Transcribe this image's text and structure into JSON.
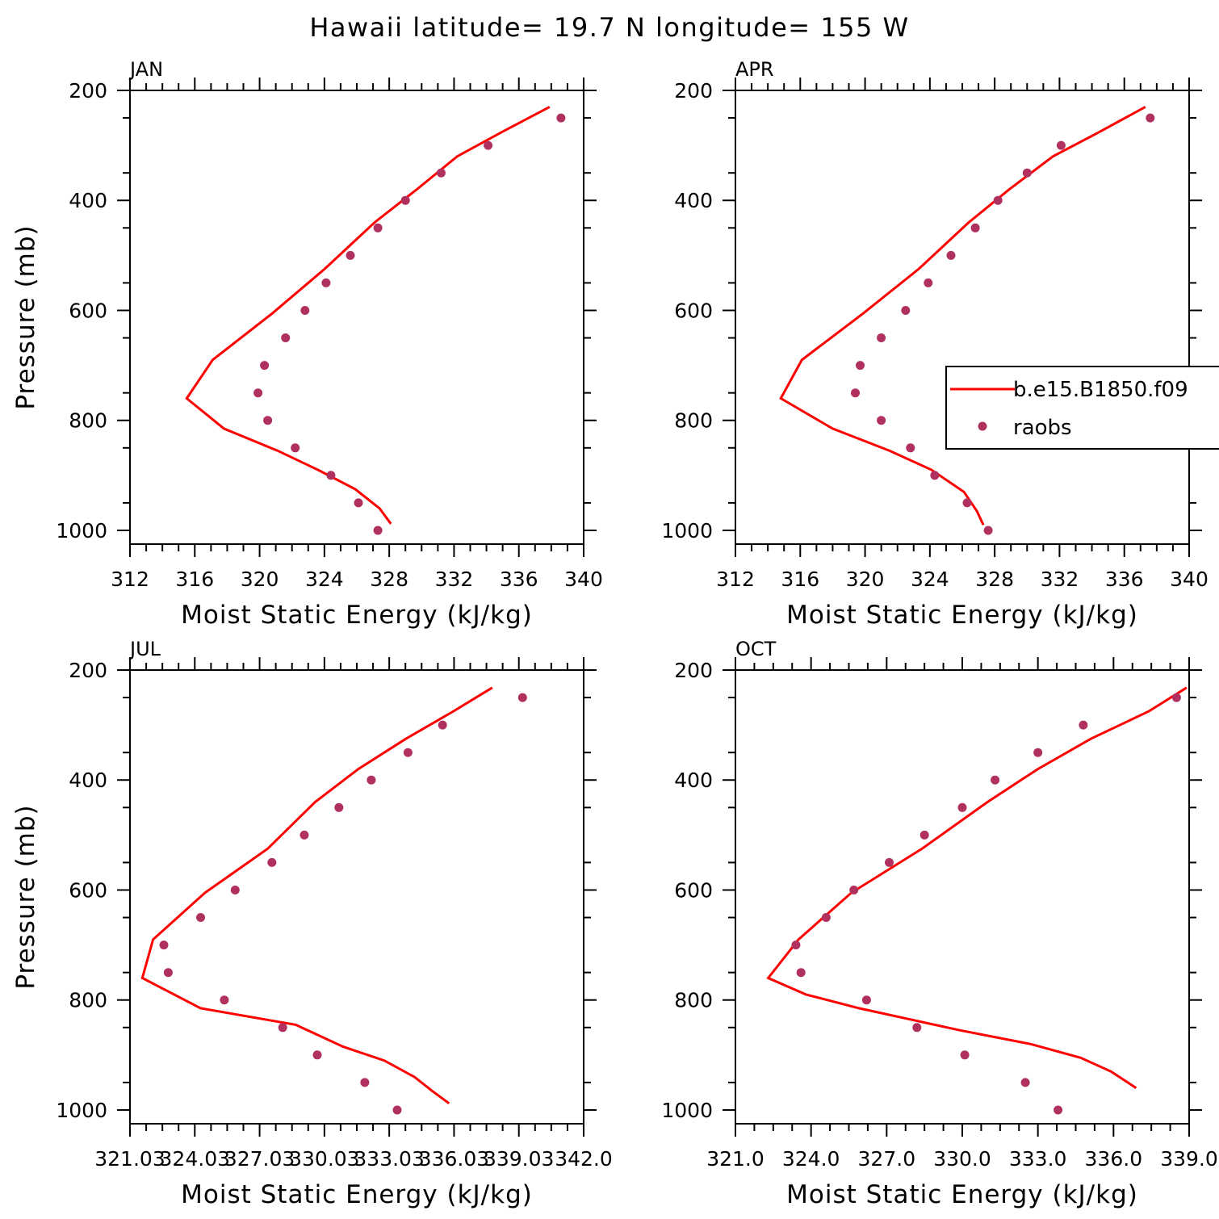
{
  "figure": {
    "title": "Hawaii  latitude= 19.7 N longitude= 155 W"
  },
  "colors": {
    "model_line": "#ff0000",
    "obs_marker": "#b03060",
    "axis": "#000000"
  },
  "legend": {
    "panel": 1,
    "entries": [
      {
        "label": "b.e15.B1850.f09",
        "kind": "line"
      },
      {
        "label": "raobs",
        "kind": "marker"
      }
    ]
  },
  "chart_data": [
    {
      "type": "line",
      "title": "JAN",
      "xlabel": "Moist Static Energy (kJ/kg)",
      "ylabel": "Pressure (mb)",
      "xlim": [
        312,
        340
      ],
      "ylim": [
        200,
        1025
      ],
      "y_inverted": true,
      "xticks": [
        312,
        316,
        320,
        324,
        328,
        332,
        336,
        340
      ],
      "xtick_labels": [
        "312",
        "316",
        "320",
        "324",
        "328",
        "332",
        "336",
        "340"
      ],
      "yticks": [
        200,
        400,
        600,
        800,
        1000
      ],
      "ytick_labels": [
        "200",
        "400",
        "600",
        "800",
        "1000"
      ],
      "series": [
        {
          "name": "b.e15.B1850.f09",
          "kind": "line",
          "x": [
            337.9,
            335.0,
            332.2,
            329.7,
            327.1,
            324.0,
            320.8,
            317.1,
            315.5,
            317.8,
            321.1,
            323.6,
            325.9,
            327.4,
            328.1
          ],
          "y": [
            230,
            275,
            320,
            380,
            440,
            525,
            605,
            690,
            760,
            815,
            855,
            890,
            925,
            960,
            988
          ]
        },
        {
          "name": "raobs",
          "kind": "marker",
          "x": [
            338.6,
            334.1,
            331.2,
            329.0,
            327.3,
            325.6,
            324.1,
            322.8,
            321.6,
            320.3,
            319.9,
            320.5,
            322.2,
            324.4,
            326.1,
            327.3
          ],
          "y": [
            250,
            300,
            350,
            400,
            450,
            500,
            550,
            600,
            650,
            700,
            750,
            800,
            850,
            900,
            950,
            1000
          ]
        }
      ]
    },
    {
      "type": "line",
      "title": "APR",
      "xlabel": "Moist Static Energy (kJ/kg)",
      "ylabel": "",
      "xlim": [
        312,
        340
      ],
      "ylim": [
        200,
        1025
      ],
      "y_inverted": true,
      "xticks": [
        312,
        316,
        320,
        324,
        328,
        332,
        336,
        340
      ],
      "xtick_labels": [
        "312",
        "316",
        "320",
        "324",
        "328",
        "332",
        "336",
        "340"
      ],
      "yticks": [
        200,
        400,
        600,
        800,
        1000
      ],
      "ytick_labels": [
        "200",
        "400",
        "600",
        "800",
        "1000"
      ],
      "series": [
        {
          "name": "b.e15.B1850.f09",
          "kind": "line",
          "x": [
            337.3,
            334.5,
            331.6,
            328.9,
            326.4,
            323.3,
            319.9,
            316.1,
            314.8,
            318.0,
            321.5,
            324.1,
            326.1,
            326.9,
            327.3
          ],
          "y": [
            230,
            275,
            320,
            380,
            440,
            525,
            605,
            690,
            760,
            815,
            855,
            890,
            930,
            965,
            990
          ]
        },
        {
          "name": "raobs",
          "kind": "marker",
          "x": [
            337.6,
            332.1,
            330.0,
            328.2,
            326.8,
            325.3,
            323.9,
            322.5,
            321.0,
            319.7,
            319.4,
            321.0,
            322.8,
            324.3,
            326.3,
            327.6
          ],
          "y": [
            250,
            300,
            350,
            400,
            450,
            500,
            550,
            600,
            650,
            700,
            750,
            800,
            850,
            900,
            950,
            1000
          ]
        }
      ]
    },
    {
      "type": "line",
      "title": "JUL",
      "xlabel": "Moist Static Energy (kJ/kg)",
      "ylabel": "Pressure (mb)",
      "xlim": [
        321.03,
        342.03
      ],
      "ylim": [
        200,
        1025
      ],
      "y_inverted": true,
      "xticks": [
        321.03,
        324.03,
        327.03,
        330.03,
        333.03,
        336.03,
        339.03,
        342.03
      ],
      "xtick_labels": [
        "321.03",
        "324.03",
        "327.03",
        "330.03",
        "333.03",
        "336.03",
        "339.03",
        "342.0"
      ],
      "yticks": [
        200,
        400,
        600,
        800,
        1000
      ],
      "ytick_labels": [
        "200",
        "400",
        "600",
        "800",
        "1000"
      ],
      "series": [
        {
          "name": "b.e15.B1850.f09",
          "kind": "line",
          "x": [
            337.8,
            336.0,
            333.8,
            331.6,
            329.6,
            327.4,
            324.5,
            322.1,
            321.6,
            324.3,
            328.7,
            330.9,
            332.8,
            334.2,
            335.0,
            335.8
          ],
          "y": [
            232,
            275,
            325,
            380,
            440,
            525,
            605,
            690,
            760,
            815,
            845,
            885,
            910,
            940,
            965,
            988
          ]
        },
        {
          "name": "raobs",
          "kind": "marker",
          "x": [
            339.2,
            335.5,
            333.9,
            332.2,
            330.7,
            329.1,
            327.6,
            325.9,
            324.3,
            322.6,
            322.8,
            325.4,
            328.1,
            329.7,
            331.9,
            333.4
          ],
          "y": [
            250,
            300,
            350,
            400,
            450,
            500,
            550,
            600,
            650,
            700,
            750,
            800,
            850,
            900,
            950,
            1000
          ]
        }
      ]
    },
    {
      "type": "line",
      "title": "OCT",
      "xlabel": "Moist Static Energy (kJ/kg)",
      "ylabel": "",
      "xlim": [
        321.0,
        339.0
      ],
      "ylim": [
        200,
        1025
      ],
      "y_inverted": true,
      "xticks": [
        321,
        324,
        327,
        330,
        333,
        336,
        339
      ],
      "xtick_labels": [
        "321.0",
        "324.0",
        "327.0",
        "330.0",
        "333.0",
        "336.0",
        "339.0"
      ],
      "yticks": [
        200,
        400,
        600,
        800,
        1000
      ],
      "ytick_labels": [
        "200",
        "400",
        "600",
        "800",
        "1000"
      ],
      "series": [
        {
          "name": "b.e15.B1850.f09",
          "kind": "line",
          "x": [
            338.9,
            337.4,
            335.1,
            333.0,
            331.0,
            328.4,
            325.6,
            323.5,
            322.3,
            323.8,
            325.9,
            329.9,
            332.7,
            334.7,
            335.9,
            336.9
          ],
          "y": [
            232,
            275,
            325,
            380,
            440,
            525,
            605,
            690,
            760,
            790,
            815,
            855,
            880,
            905,
            930,
            960
          ]
        },
        {
          "name": "raobs",
          "kind": "marker",
          "x": [
            338.5,
            334.8,
            333.0,
            331.3,
            330.0,
            328.5,
            327.1,
            325.7,
            324.6,
            323.4,
            323.6,
            326.2,
            328.2,
            330.1,
            332.5,
            333.8
          ],
          "y": [
            250,
            300,
            350,
            400,
            450,
            500,
            550,
            600,
            650,
            700,
            750,
            800,
            850,
            900,
            950,
            1000
          ]
        }
      ]
    }
  ]
}
